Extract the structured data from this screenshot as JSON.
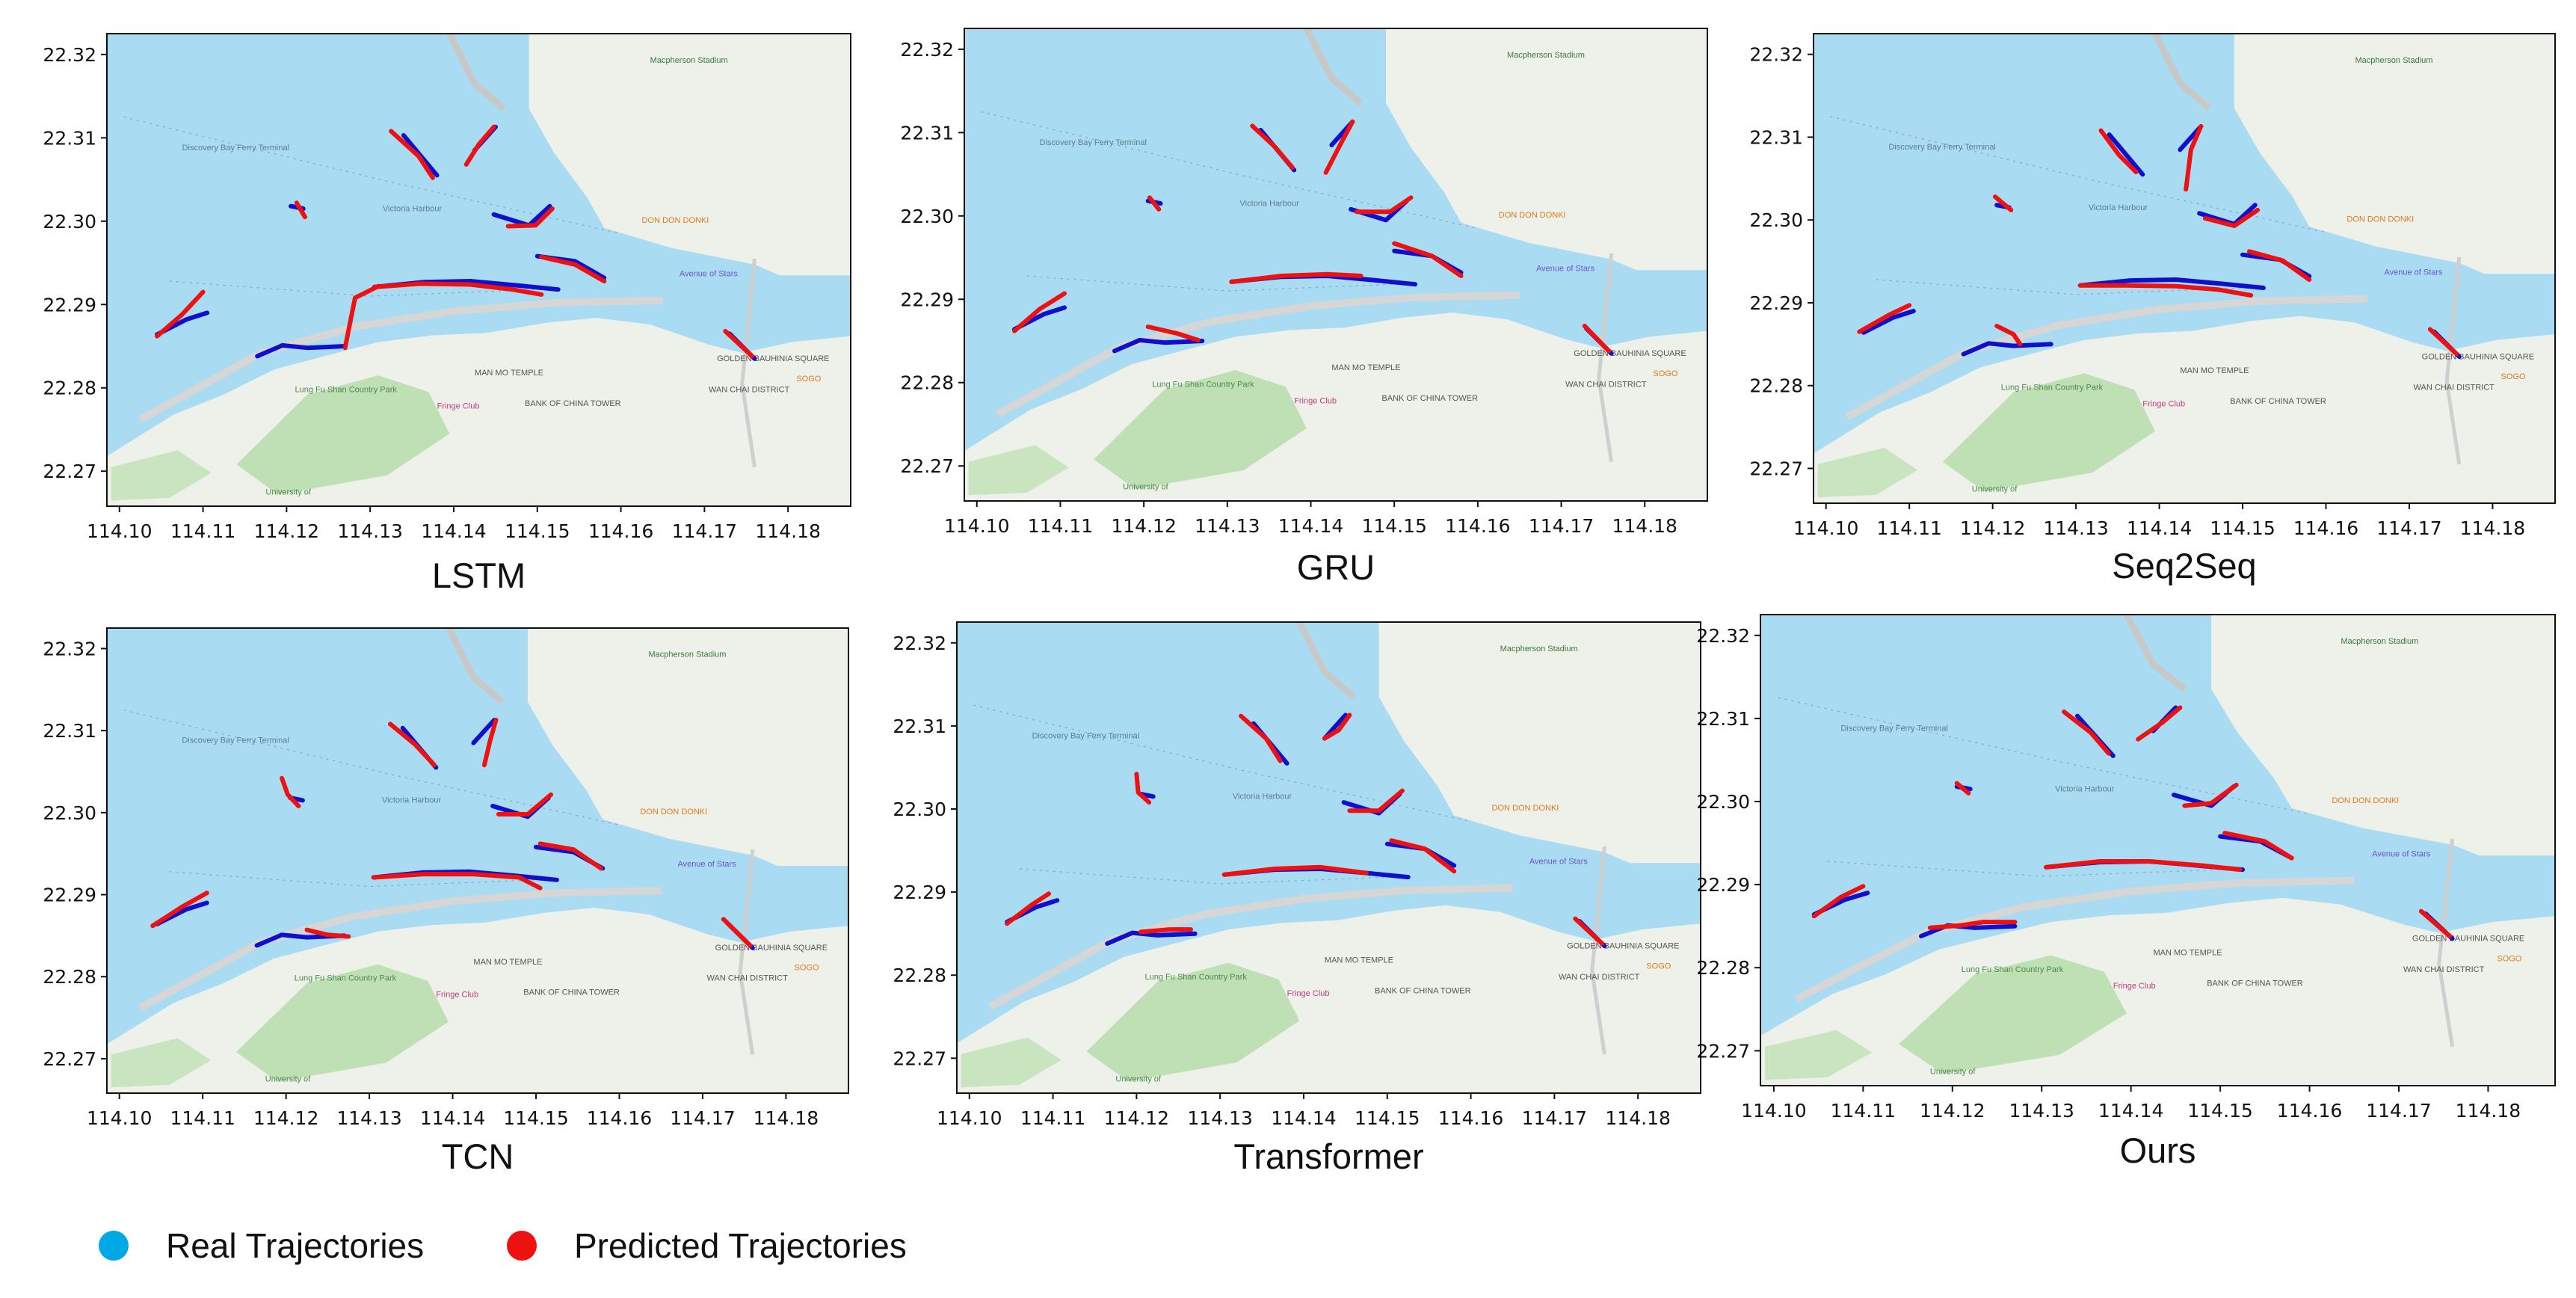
{
  "chart_data": {
    "type": "map-trajectories",
    "xticks": [
      114.1,
      114.11,
      114.12,
      114.13,
      114.14,
      114.15,
      114.16,
      114.17,
      114.18
    ],
    "yticks": [
      22.27,
      22.28,
      22.29,
      22.3,
      22.31,
      22.32
    ],
    "xlim": [
      114.0985,
      114.1875
    ],
    "ylim": [
      22.2658,
      22.3225
    ],
    "map_labels": [
      "Victoria Harbour",
      "Avenue of Stars",
      "DON DON DONKI",
      "Lung Fu Shan Country Park",
      "Fringe Club",
      "BANK OF CHINA TOWER",
      "WAN CHAI DISTRICT",
      "GOLDEN BAUHINIA SQUARE",
      "MAN MO TEMPLE",
      "Macpherson Stadium",
      "University of",
      "Discovery Bay Ferry Terminal",
      "SOGO"
    ],
    "colors": {
      "real": "#1010cc",
      "predicted": "#ee1111",
      "legend_real": "#00a9e6",
      "legend_predicted": "#ee1111",
      "water": "#a9dcf2",
      "land": "#eef0ea"
    },
    "real_tracks": [
      [
        [
          114.1045,
          22.2864
        ],
        [
          114.108,
          22.2882
        ],
        [
          114.1105,
          22.289
        ]
      ],
      [
        [
          114.1165,
          22.2838
        ],
        [
          114.1195,
          22.2851
        ],
        [
          114.1225,
          22.2848
        ],
        [
          114.127,
          22.285
        ]
      ],
      [
        [
          114.1205,
          22.3018
        ],
        [
          114.122,
          22.3015
        ]
      ],
      [
        [
          114.134,
          22.3103
        ],
        [
          114.138,
          22.3055
        ]
      ],
      [
        [
          114.1425,
          22.3085
        ],
        [
          114.145,
          22.3113
        ]
      ],
      [
        [
          114.1448,
          22.3008
        ],
        [
          114.149,
          22.2995
        ],
        [
          114.1515,
          22.3018
        ]
      ],
      [
        [
          114.1305,
          22.2921
        ],
        [
          114.1365,
          22.2927
        ],
        [
          114.142,
          22.2928
        ],
        [
          114.1475,
          22.2923
        ],
        [
          114.1525,
          22.2918
        ]
      ],
      [
        [
          114.15,
          22.2958
        ],
        [
          114.1545,
          22.2952
        ],
        [
          114.158,
          22.2932
        ]
      ],
      [
        [
          114.173,
          22.2865
        ],
        [
          114.176,
          22.2835
        ]
      ]
    ],
    "panels": [
      {
        "title": "LSTM",
        "predicted_tracks": [
          [
            [
              114.1045,
              22.2862
            ],
            [
              114.1075,
              22.2888
            ],
            [
              114.11,
              22.2915
            ]
          ],
          [
            [
              114.127,
              22.2848
            ],
            [
              114.1282,
              22.2908
            ],
            [
              114.131,
              22.2922
            ]
          ],
          [
            [
              114.1212,
              22.3022
            ],
            [
              114.1222,
              22.3005
            ]
          ],
          [
            [
              114.1325,
              22.3108
            ],
            [
              114.1358,
              22.3078
            ],
            [
              114.1375,
              22.3052
            ]
          ],
          [
            [
              114.1448,
              22.3113
            ],
            [
              114.143,
              22.3092
            ],
            [
              114.1415,
              22.3068
            ]
          ],
          [
            [
              114.1465,
              22.2994
            ],
            [
              114.1498,
              22.2995
            ],
            [
              114.1518,
              22.3015
            ]
          ],
          [
            [
              114.1305,
              22.2921
            ],
            [
              114.136,
              22.2925
            ],
            [
              114.142,
              22.2924
            ],
            [
              114.147,
              22.2918
            ],
            [
              114.1505,
              22.2912
            ]
          ],
          [
            [
              114.1505,
              22.2957
            ],
            [
              114.1545,
              22.2948
            ],
            [
              114.158,
              22.2928
            ]
          ],
          [
            [
              114.1725,
              22.2868
            ],
            [
              114.1757,
              22.2838
            ]
          ]
        ]
      },
      {
        "title": "GRU",
        "predicted_tracks": [
          [
            [
              114.1045,
              22.2862
            ],
            [
              114.1075,
              22.2888
            ],
            [
              114.1105,
              22.2907
            ]
          ],
          [
            [
              114.1205,
              22.2867
            ],
            [
              114.124,
              22.2859
            ],
            [
              114.1265,
              22.2851
            ]
          ],
          [
            [
              114.1207,
              22.3022
            ],
            [
              114.1218,
              22.3008
            ]
          ],
          [
            [
              114.133,
              22.3108
            ],
            [
              114.1357,
              22.3083
            ],
            [
              114.1378,
              22.3058
            ]
          ],
          [
            [
              114.145,
              22.3113
            ],
            [
              114.1435,
              22.3085
            ],
            [
              114.1418,
              22.3052
            ]
          ],
          [
            [
              114.1455,
              22.3005
            ],
            [
              114.1495,
              22.3005
            ],
            [
              114.152,
              22.3022
            ]
          ],
          [
            [
              114.1305,
              22.2921
            ],
            [
              114.1365,
              22.2928
            ],
            [
              114.142,
              22.293
            ],
            [
              114.146,
              22.2928
            ]
          ],
          [
            [
              114.15,
              22.2967
            ],
            [
              114.1545,
              22.2952
            ],
            [
              114.158,
              22.2928
            ]
          ],
          [
            [
              114.1728,
              22.2868
            ],
            [
              114.1757,
              22.2838
            ]
          ]
        ]
      },
      {
        "title": "Seq2Seq",
        "predicted_tracks": [
          [
            [
              114.104,
              22.2865
            ],
            [
              114.1075,
              22.2885
            ],
            [
              114.11,
              22.2897
            ]
          ],
          [
            [
              114.1205,
              22.2872
            ],
            [
              114.1225,
              22.2862
            ],
            [
              114.1233,
              22.285
            ]
          ],
          [
            [
              114.1203,
              22.3028
            ],
            [
              114.1222,
              22.3012
            ]
          ],
          [
            [
              114.133,
              22.3108
            ],
            [
              114.1352,
              22.3078
            ],
            [
              114.1372,
              22.3058
            ]
          ],
          [
            [
              114.145,
              22.3113
            ],
            [
              114.1438,
              22.3085
            ],
            [
              114.1432,
              22.3037
            ]
          ],
          [
            [
              114.1455,
              22.3002
            ],
            [
              114.149,
              22.2993
            ],
            [
              114.1518,
              22.3012
            ]
          ],
          [
            [
              114.1305,
              22.2921
            ],
            [
              114.136,
              22.2921
            ],
            [
              114.142,
              22.292
            ],
            [
              114.147,
              22.2916
            ],
            [
              114.151,
              22.2909
            ]
          ],
          [
            [
              114.1508,
              22.2962
            ],
            [
              114.1548,
              22.2951
            ],
            [
              114.158,
              22.2928
            ]
          ],
          [
            [
              114.1725,
              22.2868
            ],
            [
              114.1757,
              22.2838
            ]
          ]
        ]
      },
      {
        "title": "TCN",
        "predicted_tracks": [
          [
            [
              114.104,
              22.2862
            ],
            [
              114.1075,
              22.2885
            ],
            [
              114.1105,
              22.2902
            ]
          ],
          [
            [
              114.1225,
              22.2857
            ],
            [
              114.125,
              22.2851
            ],
            [
              114.1275,
              22.2849
            ]
          ],
          [
            [
              114.1195,
              22.3042
            ],
            [
              114.1202,
              22.3022
            ],
            [
              114.1215,
              22.3008
            ]
          ],
          [
            [
              114.1325,
              22.3108
            ],
            [
              114.1355,
              22.3083
            ],
            [
              114.1378,
              22.3058
            ]
          ],
          [
            [
              114.1452,
              22.3113
            ],
            [
              114.1445,
              22.3088
            ],
            [
              114.1438,
              22.3058
            ]
          ],
          [
            [
              114.1455,
              22.2998
            ],
            [
              114.149,
              22.2998
            ],
            [
              114.1518,
              22.3022
            ]
          ],
          [
            [
              114.1305,
              22.2921
            ],
            [
              114.1365,
              22.2925
            ],
            [
              114.1425,
              22.2925
            ],
            [
              114.148,
              22.2921
            ],
            [
              114.1505,
              22.2908
            ]
          ],
          [
            [
              114.1505,
              22.2962
            ],
            [
              114.1545,
              22.2955
            ],
            [
              114.1578,
              22.2932
            ]
          ],
          [
            [
              114.1725,
              22.287
            ],
            [
              114.1757,
              22.2838
            ]
          ]
        ]
      },
      {
        "title": "Transformer",
        "predicted_tracks": [
          [
            [
              114.1045,
              22.2862
            ],
            [
              114.1075,
              22.2885
            ],
            [
              114.1095,
              22.2898
            ]
          ],
          [
            [
              114.1205,
              22.2852
            ],
            [
              114.124,
              22.2855
            ],
            [
              114.1265,
              22.2855
            ]
          ],
          [
            [
              114.12,
              22.3042
            ],
            [
              114.1202,
              22.302
            ],
            [
              114.1215,
              22.3008
            ]
          ],
          [
            [
              114.1325,
              22.3112
            ],
            [
              114.1355,
              22.3085
            ],
            [
              114.1372,
              22.3058
            ]
          ],
          [
            [
              114.1455,
              22.3113
            ],
            [
              114.1442,
              22.3095
            ],
            [
              114.1425,
              22.3085
            ]
          ],
          [
            [
              114.1455,
              22.2998
            ],
            [
              114.149,
              22.2998
            ],
            [
              114.1518,
              22.3022
            ]
          ],
          [
            [
              114.1305,
              22.2921
            ],
            [
              114.1365,
              22.2928
            ],
            [
              114.142,
              22.293
            ],
            [
              114.1475,
              22.2923
            ]
          ],
          [
            [
              114.1505,
              22.2962
            ],
            [
              114.1545,
              22.2952
            ],
            [
              114.158,
              22.2925
            ]
          ],
          [
            [
              114.1725,
              22.2868
            ],
            [
              114.1757,
              22.2838
            ]
          ]
        ]
      },
      {
        "title": "Ours",
        "predicted_tracks": [
          [
            [
              114.1045,
              22.2862
            ],
            [
              114.1075,
              22.2885
            ],
            [
              114.11,
              22.2898
            ]
          ],
          [
            [
              114.1175,
              22.2848
            ],
            [
              114.121,
              22.2851
            ],
            [
              114.1235,
              22.2855
            ],
            [
              114.127,
              22.2855
            ]
          ],
          [
            [
              114.1205,
              22.3022
            ],
            [
              114.1218,
              22.301
            ]
          ],
          [
            [
              114.1325,
              22.3108
            ],
            [
              114.1355,
              22.3083
            ],
            [
              114.1375,
              22.3058
            ]
          ],
          [
            [
              114.1455,
              22.3113
            ],
            [
              114.1435,
              22.3095
            ],
            [
              114.1408,
              22.3075
            ]
          ],
          [
            [
              114.146,
              22.2995
            ],
            [
              114.149,
              22.2998
            ],
            [
              114.1518,
              22.302
            ]
          ],
          [
            [
              114.1305,
              22.2921
            ],
            [
              114.1365,
              22.2928
            ],
            [
              114.142,
              22.2928
            ],
            [
              114.148,
              22.2923
            ],
            [
              114.1522,
              22.2918
            ]
          ],
          [
            [
              114.1505,
              22.2962
            ],
            [
              114.155,
              22.2952
            ],
            [
              114.158,
              22.2932
            ]
          ],
          [
            [
              114.1725,
              22.2868
            ],
            [
              114.1757,
              22.2838
            ]
          ]
        ]
      }
    ],
    "legend": [
      {
        "label": "Real Trajectories",
        "color": "#00a9e6"
      },
      {
        "label": "Predicted Trajectories",
        "color": "#ee1111"
      }
    ]
  }
}
